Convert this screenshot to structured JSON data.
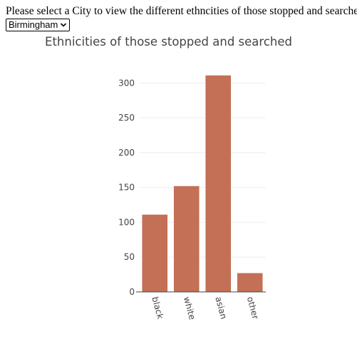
{
  "page": {
    "prompt": "Please select a City to view the different ethncities of those stopped and searched",
    "city_select": {
      "selected": "Birmingham"
    }
  },
  "chart_data": {
    "type": "bar",
    "title": "Ethnicities of those stopped and searched",
    "categories": [
      "black",
      "white",
      "asian",
      "other"
    ],
    "values": [
      111,
      152,
      311,
      27
    ],
    "ylim": [
      0,
      325
    ],
    "yticks": [
      0,
      50,
      100,
      150,
      200,
      250,
      300
    ],
    "xlabel": "",
    "ylabel": "",
    "grid": true,
    "bar_color": "#c37057",
    "grid_color": "#eeeeee",
    "text_color": "#444444"
  }
}
